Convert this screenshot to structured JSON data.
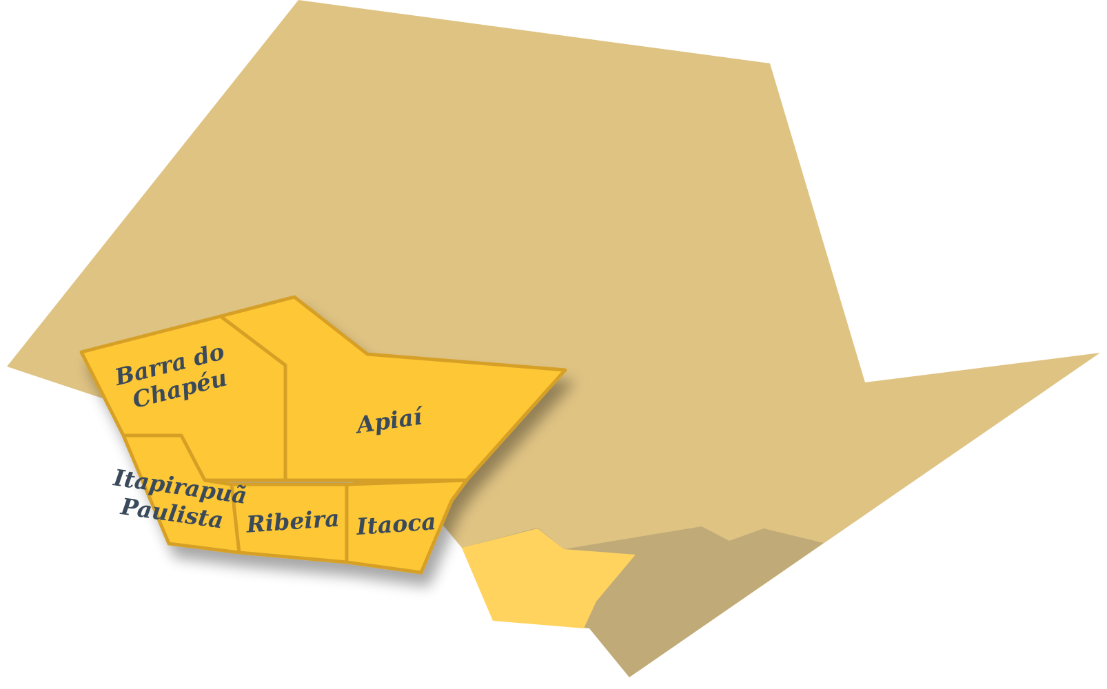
{
  "map": {
    "colors": {
      "background": "#ffffff",
      "state": "#dfc383",
      "state_shadow": "#c0aa77",
      "highlight_region": "#fec735",
      "highlight_border": "#d6a028",
      "neighbor_region": "#ffd35e",
      "label_text": "#3a4a5a"
    },
    "regions": [
      {
        "name": "Barra do",
        "name_line2": "Chapéu"
      },
      {
        "name": "Apiaí"
      },
      {
        "name": "Itapirapuã",
        "name_line2": "Paulista"
      },
      {
        "name": "Ribeira"
      },
      {
        "name": "Itaoca"
      }
    ]
  }
}
